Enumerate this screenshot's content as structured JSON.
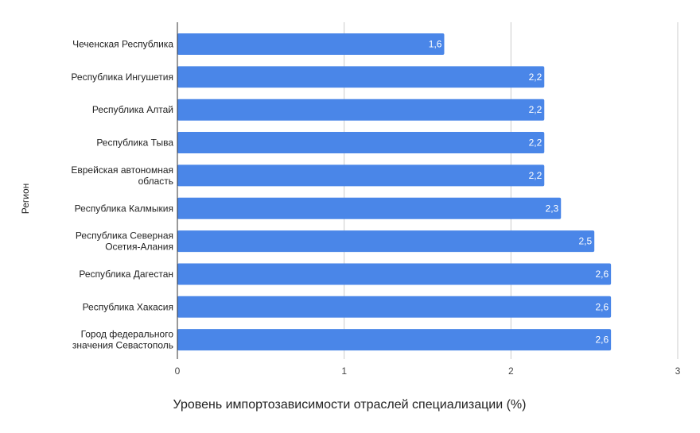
{
  "chart_data": {
    "type": "bar",
    "orientation": "horizontal",
    "xlabel": "Уровень импортозависимости отраслей специализации (%)",
    "ylabel": "Регион",
    "xlim": [
      0,
      3
    ],
    "x_ticks": [
      "0",
      "1",
      "2",
      "3"
    ],
    "grid": true,
    "bar_color": "#4a86e8",
    "categories": [
      [
        "Чеченская Республика"
      ],
      [
        "Республика Ингушетия"
      ],
      [
        "Республика Алтай"
      ],
      [
        "Республика Тыва"
      ],
      [
        "Еврейская автономная",
        "область"
      ],
      [
        "Республика Калмыкия"
      ],
      [
        "Республика Северная",
        "Осетия-Алания"
      ],
      [
        "Республика Дагестан"
      ],
      [
        "Республика Хакасия"
      ],
      [
        "Город федерального",
        "значения Севастополь"
      ]
    ],
    "values": [
      1.6,
      2.2,
      2.2,
      2.2,
      2.2,
      2.3,
      2.5,
      2.6,
      2.6,
      2.6
    ],
    "value_labels": [
      "1,6",
      "2,2",
      "2,2",
      "2,2",
      "2,2",
      "2,3",
      "2,5",
      "2,6",
      "2,6",
      "2,6"
    ]
  }
}
